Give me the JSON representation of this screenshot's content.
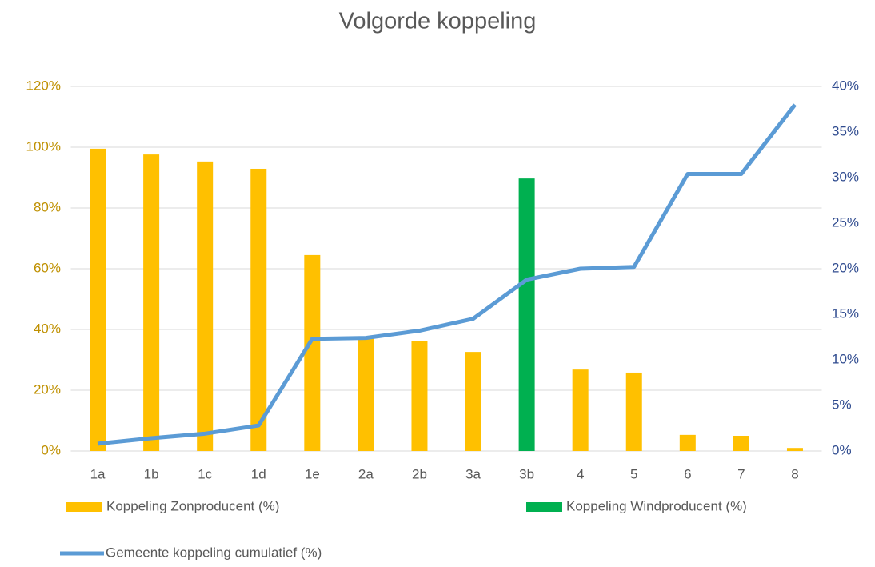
{
  "chart_data": {
    "type": "bar",
    "title": "Volgorde koppeling",
    "categories": [
      "1a",
      "1b",
      "1c",
      "1d",
      "1e",
      "2a",
      "2b",
      "3a",
      "3b",
      "4",
      "5",
      "6",
      "7",
      "8"
    ],
    "series": [
      {
        "name": "Koppeling  Zonproducent (%)",
        "color": "#ffc000",
        "type": "bar",
        "values": [
          99.5,
          97.6,
          95.3,
          92.9,
          64.5,
          37.6,
          36.3,
          32.6,
          null,
          26.8,
          25.8,
          5.3,
          5,
          1
        ]
      },
      {
        "name": "Koppeling  Windproducent (%)",
        "color": "#00b050",
        "type": "bar",
        "values": [
          null,
          null,
          null,
          null,
          null,
          null,
          null,
          null,
          89.7,
          null,
          null,
          null,
          null,
          null
        ]
      },
      {
        "name": "Gemeente koppeling cumulatief (%)",
        "color": "#5b9bd5",
        "type": "line",
        "axis": "y2",
        "values": [
          0.8,
          1.4,
          1.9,
          2.8,
          12.3,
          12.4,
          13.2,
          14.5,
          18.8,
          20.0,
          20.2,
          30.4,
          30.4,
          38.0
        ]
      }
    ],
    "ylim": [
      0,
      120
    ],
    "yticks": [
      {
        "value": 0,
        "label": "0%"
      },
      {
        "value": 20,
        "label": "20%"
      },
      {
        "value": 40,
        "label": "40%"
      },
      {
        "value": 60,
        "label": "60%"
      },
      {
        "value": 80,
        "label": "80%"
      },
      {
        "value": 100,
        "label": "100%"
      },
      {
        "value": 120,
        "label": "120%"
      }
    ],
    "y2lim": [
      0,
      40
    ],
    "y2ticks": [
      {
        "value": 0,
        "label": "0%"
      },
      {
        "value": 5,
        "label": "5%"
      },
      {
        "value": 10,
        "label": "10%"
      },
      {
        "value": 15,
        "label": "15%"
      },
      {
        "value": 20,
        "label": "20%"
      },
      {
        "value": 25,
        "label": "25%"
      },
      {
        "value": 30,
        "label": "30%"
      },
      {
        "value": 35,
        "label": "35%"
      },
      {
        "value": 40,
        "label": "40%"
      }
    ],
    "grid": true
  }
}
